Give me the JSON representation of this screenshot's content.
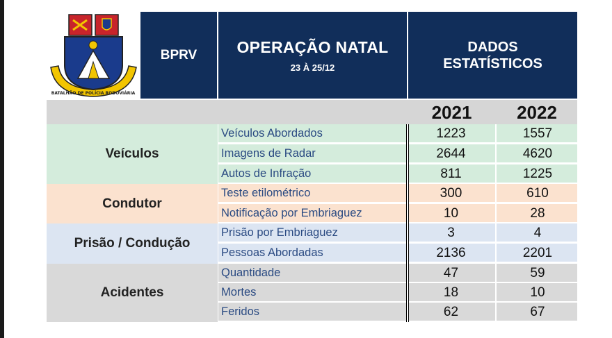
{
  "header": {
    "unit": "BPRV",
    "operation_title": "OPERAÇÃO NATAL",
    "operation_dates": "23 À 25/12",
    "stats_line1": "DADOS",
    "stats_line2": "ESTATÍSTICOS",
    "logo_text": "BATALHÃO DE POLÍCIA RODOVIÁRIA"
  },
  "years": [
    "2021",
    "2022"
  ],
  "categories": [
    {
      "name": "Veículos",
      "color": "#d4ecdc",
      "rows": [
        {
          "label": "Veículos Abordados",
          "v2021": "1223",
          "v2022": "1557"
        },
        {
          "label": "Imagens de Radar",
          "v2021": "2644",
          "v2022": "4620"
        },
        {
          "label": "Autos de Infração",
          "v2021": "811",
          "v2022": "1225"
        }
      ]
    },
    {
      "name": "Condutor",
      "color": "#fbe2cf",
      "rows": [
        {
          "label": "Teste etilométrico",
          "v2021": "300",
          "v2022": "610"
        },
        {
          "label": "Notificação por Embriaguez",
          "v2021": "10",
          "v2022": "28"
        }
      ]
    },
    {
      "name": "Prisão / Condução",
      "color": "#dce5f2",
      "rows": [
        {
          "label": "Prisão  por Embriaguez",
          "v2021": "3",
          "v2022": "4"
        },
        {
          "label": "Pessoas Abordadas",
          "v2021": "2136",
          "v2022": "2201"
        }
      ]
    },
    {
      "name": "Acidentes",
      "color": "#d9d9d9",
      "rows": [
        {
          "label": "Quantidade",
          "v2021": "47",
          "v2022": "59"
        },
        {
          "label": "Mortes",
          "v2021": "18",
          "v2022": "10"
        },
        {
          "label": "Feridos",
          "v2021": "62",
          "v2022": "67"
        }
      ]
    }
  ]
}
